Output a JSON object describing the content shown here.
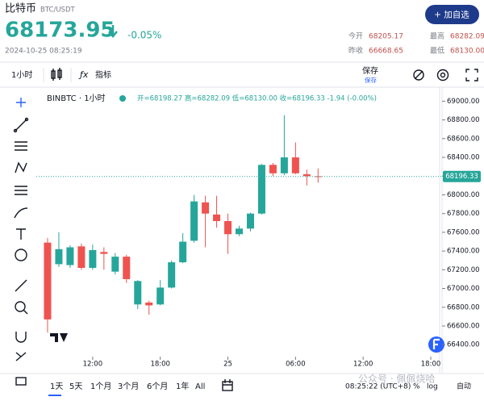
{
  "header": {
    "name": "比特币",
    "pair": "BTC/USDT",
    "button": "+ 加自选",
    "price": "68173.95",
    "change": "-0.05%",
    "datetime": "2024-10-25 08:25:19",
    "stats": [
      {
        "label": "今开",
        "value": "68205.17"
      },
      {
        "label": "最高",
        "value": "68282.09"
      },
      {
        "label": "昨收",
        "value": "66668.65"
      },
      {
        "label": "最低",
        "value": "68130.00"
      }
    ]
  },
  "toolbar": {
    "interval": "1小时",
    "indicators": "指标",
    "save": "保存",
    "save_sub": "保存"
  },
  "chart_data": {
    "type": "candlestick",
    "title": "BINBTC · 1小时",
    "ohlc_text": "开=68198.27 高=68282.09 低=68130.00 收=68196.33 -1.94 (-0.00%)",
    "up_color": "#26a69a",
    "down_color": "#ef5350",
    "open": [
      67490,
      67260,
      67250,
      67450,
      67220,
      67390,
      67180,
      67340,
      66830,
      66850,
      66830,
      67010,
      67280,
      67510,
      67920,
      67790,
      67720,
      67580,
      67640,
      67800,
      68320,
      68230,
      68400,
      68220,
      68198.27
    ],
    "high": [
      67540,
      67600,
      67460,
      67480,
      67470,
      67440,
      67380,
      67360,
      67090,
      66870,
      67090,
      67300,
      67590,
      68000,
      67990,
      67990,
      67800,
      67670,
      67810,
      68330,
      68340,
      68850,
      68560,
      68270,
      68282.09
    ],
    "low": [
      66530,
      67230,
      67220,
      67200,
      67200,
      67200,
      67150,
      67060,
      66780,
      66720,
      66820,
      67000,
      67270,
      67490,
      67440,
      67650,
      67370,
      67560,
      67610,
      67790,
      68200,
      68210,
      68220,
      68100,
      68130
    ],
    "close": [
      66670,
      67420,
      67440,
      67220,
      67410,
      67370,
      67340,
      67100,
      67080,
      66820,
      67010,
      67280,
      67500,
      67930,
      67800,
      67720,
      67580,
      67640,
      67800,
      68320,
      68230,
      68400,
      68230,
      68200,
      68196.33
    ],
    "last_price": {
      "value": 68196.33,
      "label": "68196.33"
    },
    "xlim": [
      -1,
      35
    ],
    "xticks": [
      {
        "value": 4,
        "label": "12:00"
      },
      {
        "value": 10,
        "label": "18:00"
      },
      {
        "value": 16,
        "label": "25"
      },
      {
        "value": 22,
        "label": "06:00"
      },
      {
        "value": 28,
        "label": "12:00"
      },
      {
        "value": 34,
        "label": "18:00"
      }
    ],
    "ylim": [
      66290,
      69150
    ],
    "yticks": [
      {
        "value": 66400,
        "label": "66400.00"
      },
      {
        "value": 66600,
        "label": "66600.00"
      },
      {
        "value": 66800,
        "label": "66800.00"
      },
      {
        "value": 67000,
        "label": "67000.00"
      },
      {
        "value": 67200,
        "label": "67200.00"
      },
      {
        "value": 67400,
        "label": "67400.00"
      },
      {
        "value": 67600,
        "label": "67600.00"
      },
      {
        "value": 67800,
        "label": "67800.00"
      },
      {
        "value": 68000,
        "label": "68000.00"
      },
      {
        "value": 68200,
        "label": "68200.00"
      },
      {
        "value": 68400,
        "label": "68400.00"
      },
      {
        "value": 68600,
        "label": "68600.00"
      },
      {
        "value": 68800,
        "label": "68800.00"
      },
      {
        "value": 69000,
        "label": "69000.00"
      }
    ]
  },
  "footer": {
    "ranges": [
      "1天",
      "5天",
      "1个月",
      "3个月",
      "6个月",
      "1年",
      "All"
    ],
    "time": "08:25:22 (UTC+8)",
    "percent": "%",
    "log": "log",
    "auto": "自动"
  },
  "watermark": "公众号 · 佩佩烧哈"
}
